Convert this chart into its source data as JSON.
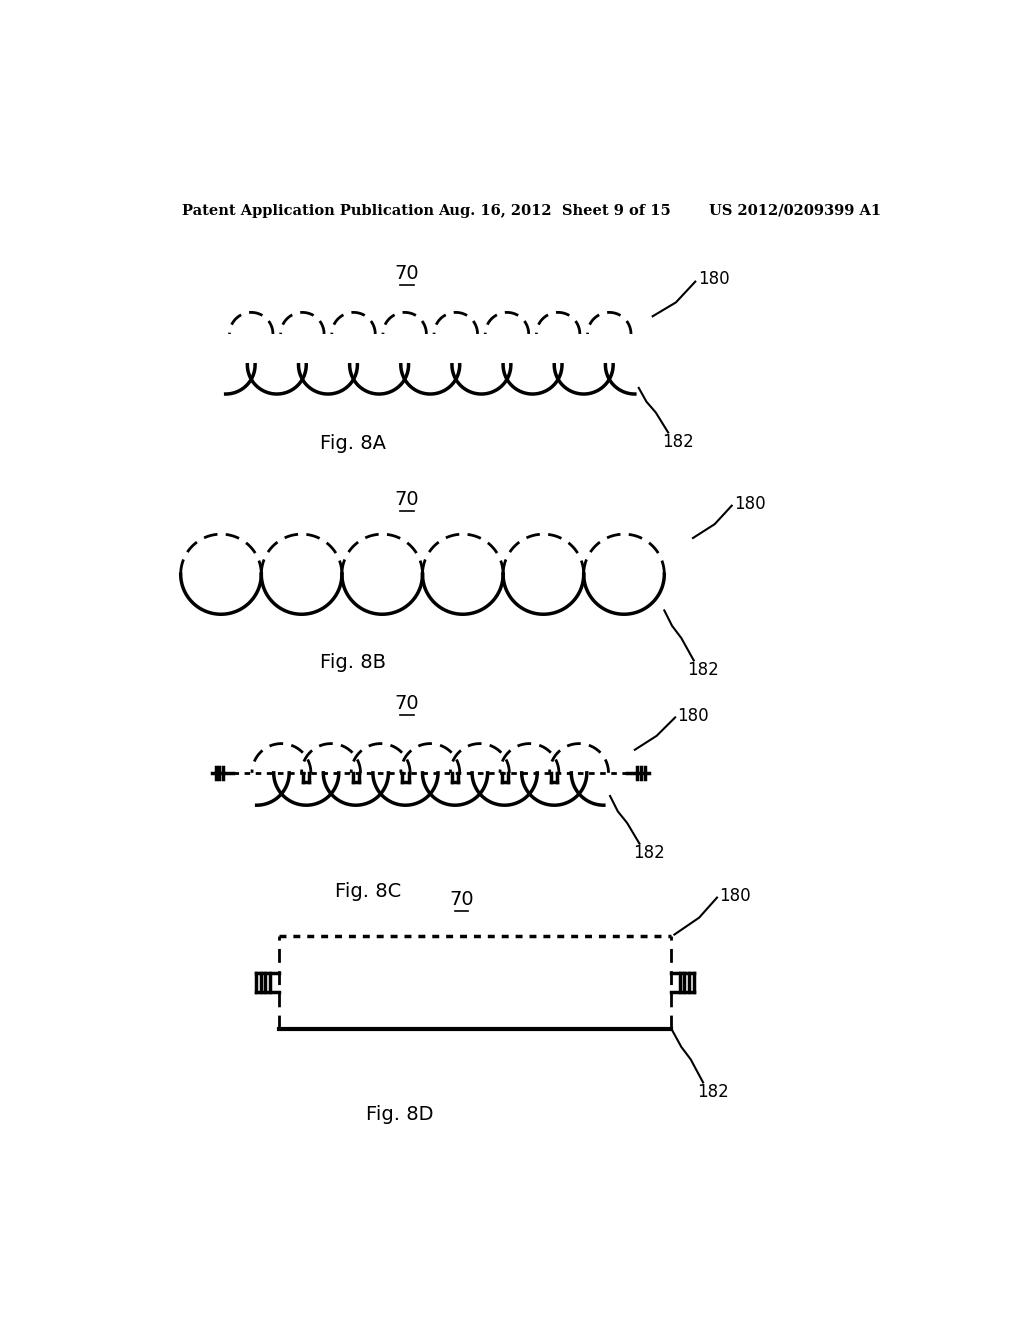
{
  "bg_color": "#ffffff",
  "text_color": "#000000",
  "header_left": "Patent Application Publication",
  "header_center": "Aug. 16, 2012  Sheet 9 of 15",
  "header_right": "US 2012/0209399 A1",
  "label_70": "70",
  "label_180": "180",
  "label_182": "182",
  "fig_labels": [
    "Fig. 8A",
    "Fig. 8B",
    "Fig. 8C",
    "Fig. 8D"
  ],
  "solid_lw": 2.5,
  "dashed_lw": 2.0,
  "dotted_lw": 2.5
}
